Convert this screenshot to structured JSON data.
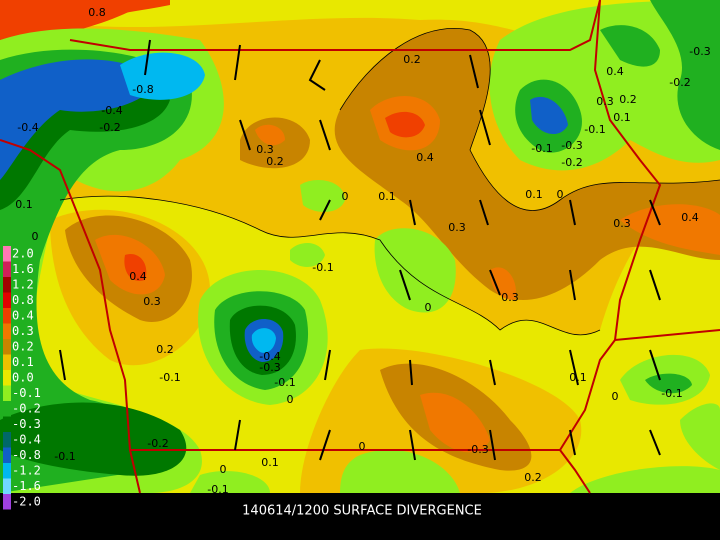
{
  "title": "140614/1200 SURFACE DIVERGENCE",
  "colorbar": {
    "labels": [
      "2.0",
      "1.6",
      "1.2",
      "0.8",
      "0.4",
      "0.3",
      "0.2",
      "0.1",
      "0.0",
      "-0.1",
      "-0.2",
      "-0.3",
      "-0.4",
      "-0.8",
      "-1.2",
      "-1.6",
      "-2.0"
    ],
    "colors": [
      "#ff78b4",
      "#d0205a",
      "#a00000",
      "#e00000",
      "#f04000",
      "#f07800",
      "#c88400",
      "#f0c000",
      "#e8e800",
      "#90ee20",
      "#20b020",
      "#007800",
      "#006868",
      "#1060c8",
      "#00b8f0",
      "#70d8ff",
      "#a040e0"
    ]
  },
  "contour_labels": [
    "0.8",
    "-0.8",
    "0.2",
    "-0.3",
    "0.4",
    "0.3",
    "0.2",
    "0.1",
    "-0.2",
    "-0.1",
    "-0.3",
    "-0.1",
    "-0.2",
    "0.3",
    "0.2",
    "0.4",
    "-0.4",
    "-0.4",
    "-0.2",
    "0.1",
    "0",
    "0.1",
    "0.1",
    "0",
    "0.3",
    "0.4",
    "0.3",
    "0",
    "-0.1",
    "0.4",
    "0.3",
    "0.3",
    "0",
    "0.2",
    "-0.4",
    "-0.3",
    "-0.1",
    "-0.1",
    "0.1",
    "0",
    "0",
    "-0.1",
    "-0.2",
    "0",
    "-0.3",
    "-0.1",
    "0.1",
    "0",
    "0.2",
    "-0.1"
  ]
}
